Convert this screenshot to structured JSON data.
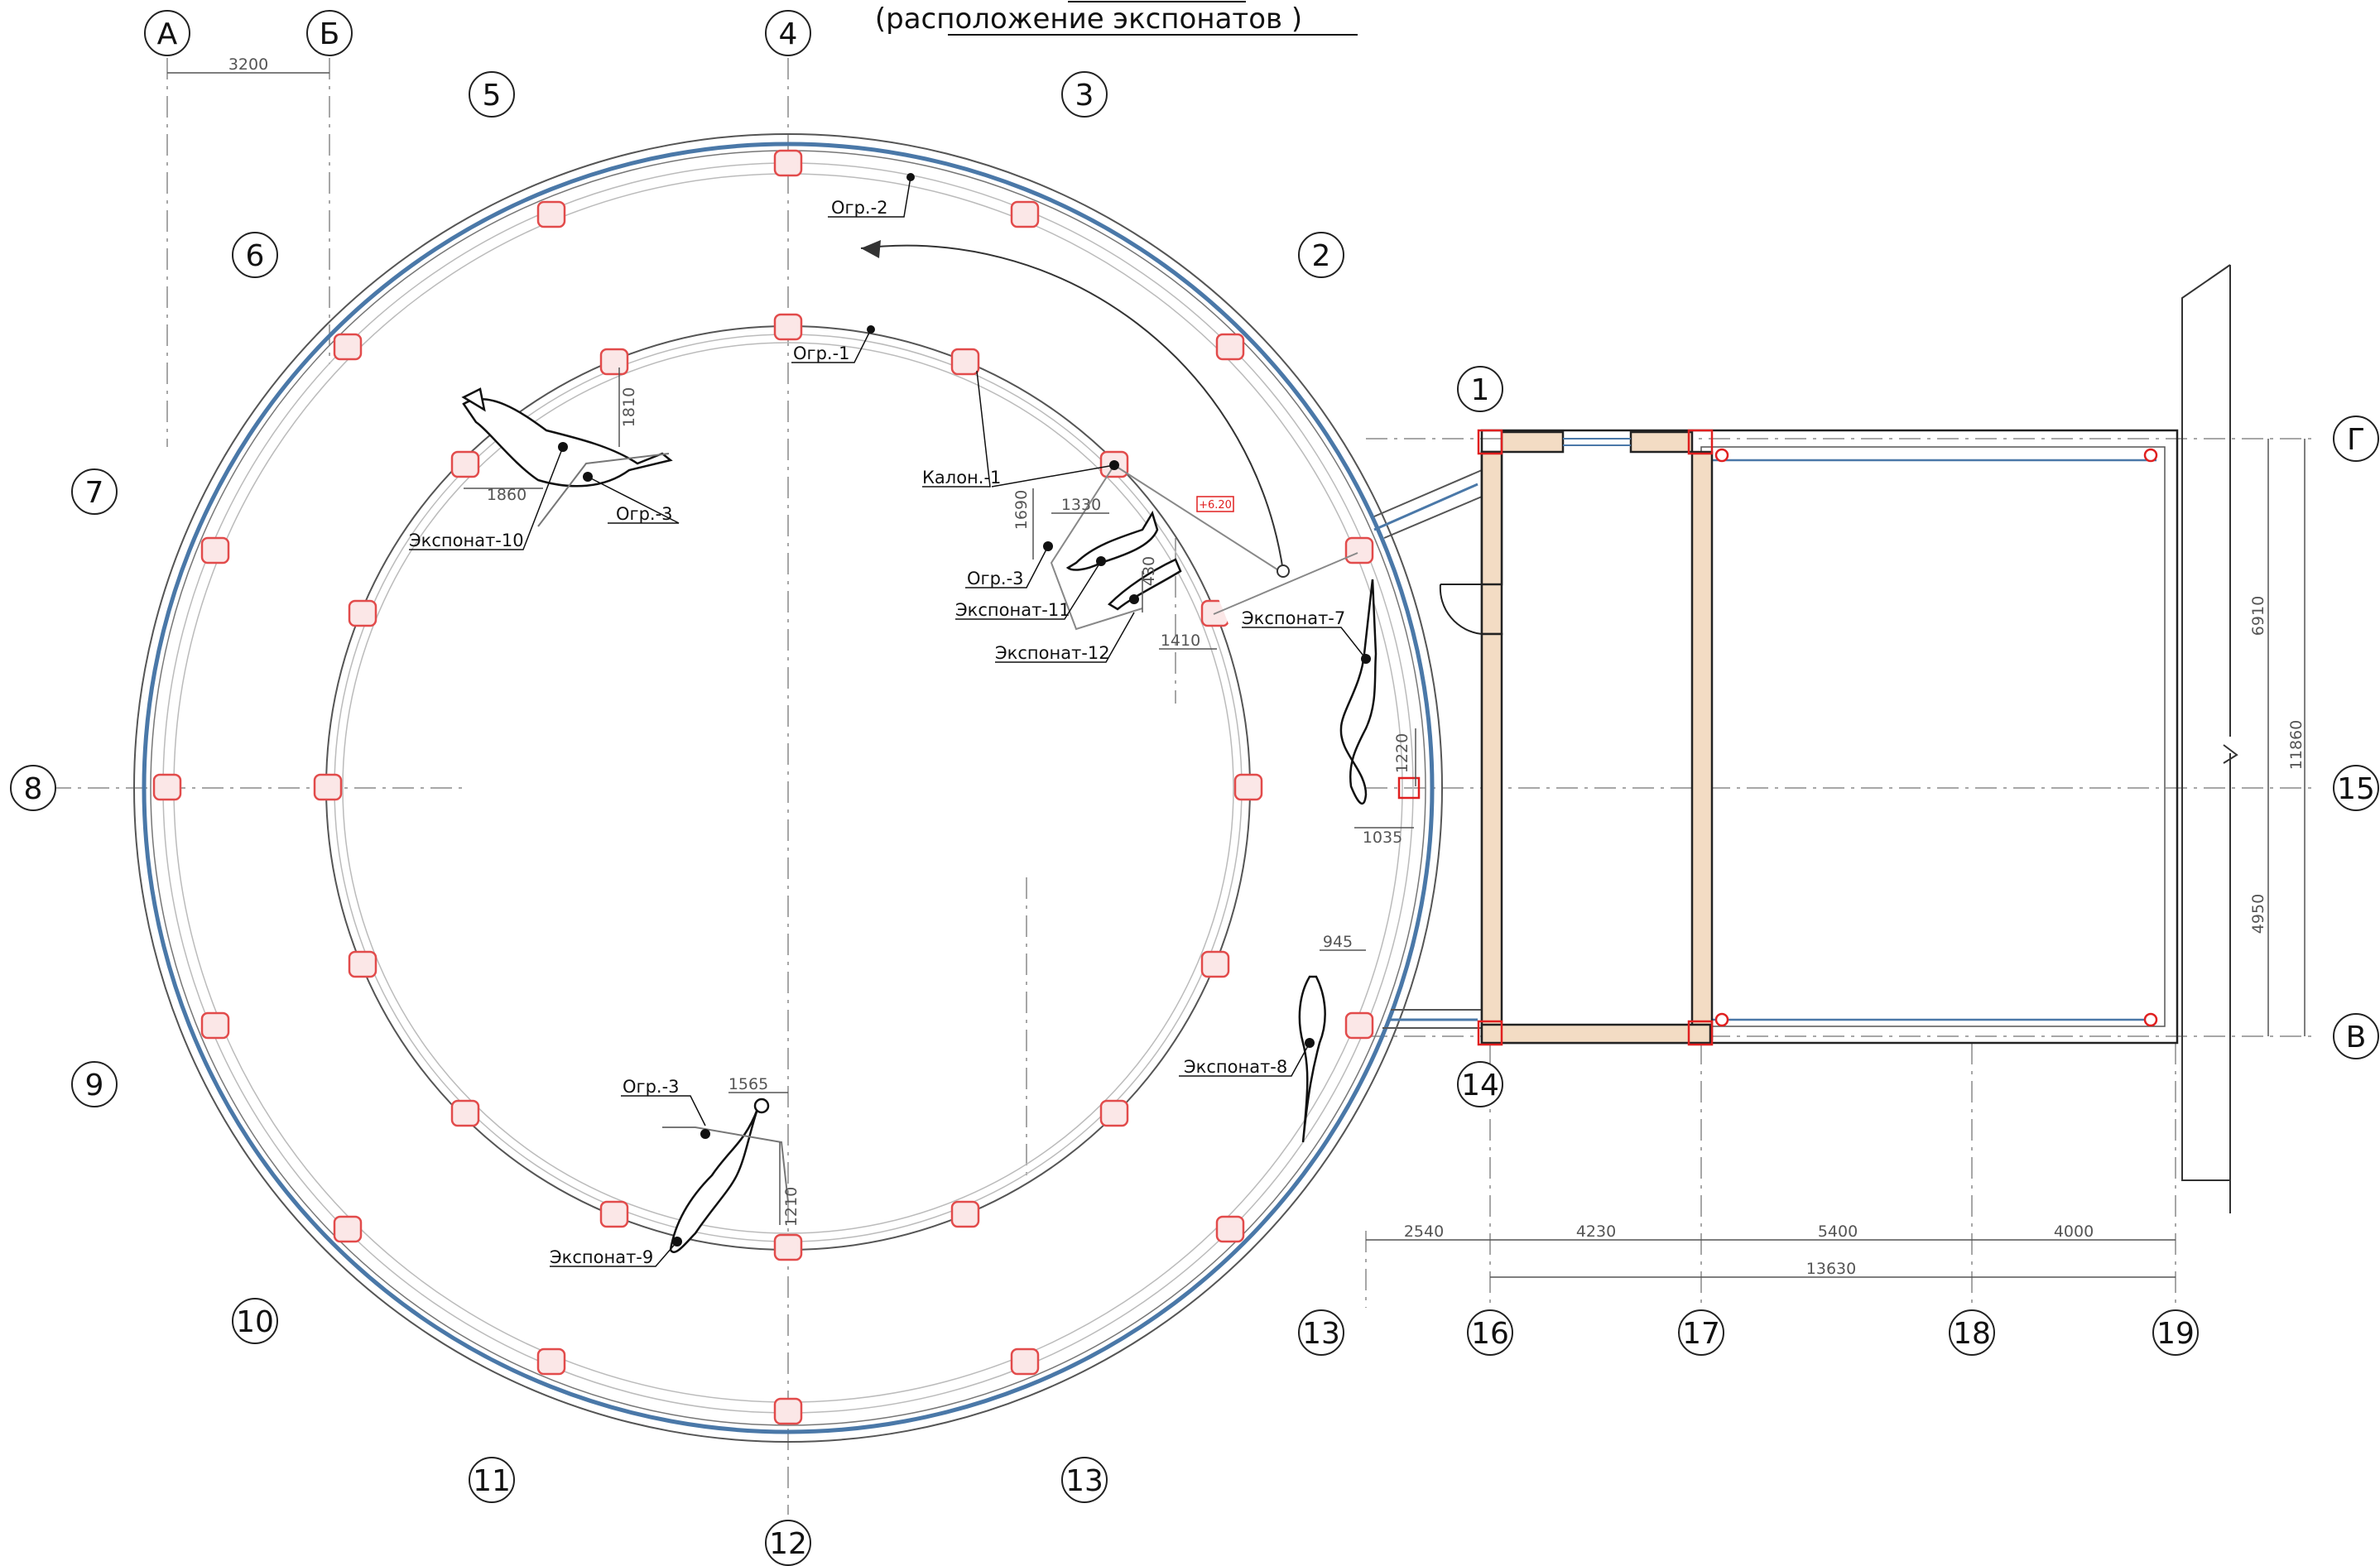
{
  "title": "(расположение экспонатов )",
  "colors": {
    "glass": "#4a78a8",
    "post": "#e24b4b",
    "redline": "#e02020",
    "hatch": "#f3dcc4",
    "line": "#222222",
    "grid": "#8a8a8a"
  },
  "axes": {
    "a": "А",
    "b": "Б",
    "g": "Г",
    "v": "В",
    "n1": "1",
    "n2": "2",
    "n3": "3",
    "n4": "4",
    "n5": "5",
    "n6": "6",
    "n7": "7",
    "n8": "8",
    "n9": "9",
    "n10": "10",
    "n11": "11",
    "n12": "12",
    "n13a": "13",
    "n13b": "13",
    "n14": "14",
    "n15": "15",
    "n16": "16",
    "n17": "17",
    "n18": "18",
    "n19": "19"
  },
  "dims": {
    "d3200": "3200",
    "d1810": "1810",
    "d1860": "1860",
    "d1690": "1690",
    "d1330": "1330",
    "d430": "430",
    "d1410": "1410",
    "d1220": "1220",
    "d1035": "1035",
    "d945": "945",
    "d1565": "1565",
    "d1210": "1210",
    "d2540": "2540",
    "d4230": "4230",
    "d5400": "5400",
    "d4000": "4000",
    "d13630": "13630",
    "d6910": "6910",
    "d11860": "11860",
    "d4950": "4950"
  },
  "level_mark": "+6.20",
  "labels": {
    "ogr2": "Огр.-2",
    "ogr1": "Огр.-1",
    "kalon1": "Калон.-1",
    "ogr3_a": "Огр.-3",
    "ogr3_b": "Огр.-3",
    "ogr3_c": "Огр.-3",
    "exp10": "Экспонат-10",
    "exp11": "Экспонат-11",
    "exp12": "Экспонат-12",
    "exp7": "Экспонат-7",
    "exp8": "Экспонат-8",
    "exp9": "Экспонат-9"
  }
}
